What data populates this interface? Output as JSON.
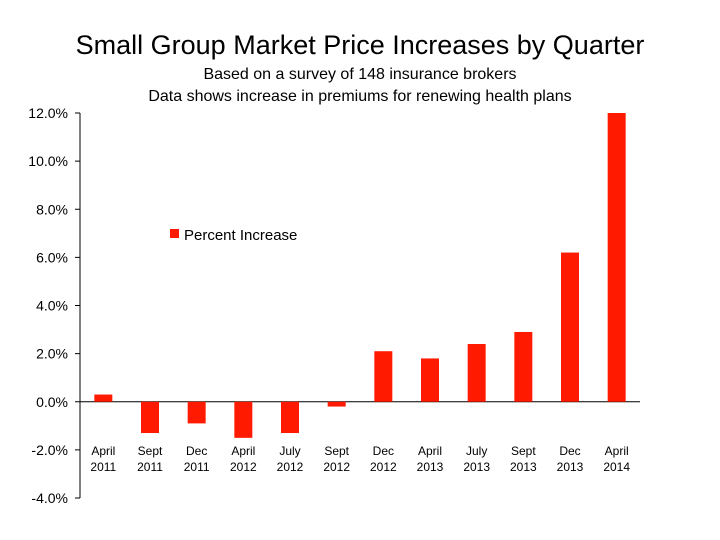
{
  "chart_data": {
    "type": "bar",
    "title": "Small Group Market Price Increases by Quarter",
    "subtitle": [
      "Based on a survey of 148 insurance brokers",
      "Data shows increase in premiums for renewing health plans"
    ],
    "categories": [
      [
        "April",
        "2011"
      ],
      [
        "Sept",
        "2011"
      ],
      [
        "Dec",
        "2011"
      ],
      [
        "April",
        "2012"
      ],
      [
        "July",
        "2012"
      ],
      [
        "Sept",
        "2012"
      ],
      [
        "Dec",
        "2012"
      ],
      [
        "April",
        "2013"
      ],
      [
        "July",
        "2013"
      ],
      [
        "Sept",
        "2013"
      ],
      [
        "Dec",
        "2013"
      ],
      [
        "April",
        "2014"
      ]
    ],
    "series": [
      {
        "name": "Percent Increase",
        "values": [
          0.3,
          -1.3,
          -0.9,
          -1.5,
          -1.3,
          -0.2,
          2.1,
          1.8,
          2.4,
          2.9,
          6.2,
          12.0
        ]
      }
    ],
    "ylim": [
      -4,
      12
    ],
    "yticks": [
      12,
      10,
      8,
      6,
      4,
      2,
      0,
      -2,
      -4
    ],
    "ytick_labels": [
      "12.0%",
      "10.0%",
      "8.0%",
      "6.0%",
      "4.0%",
      "2.0%",
      "0.0%",
      "-2.0%",
      "-4.0%"
    ],
    "legend_position": "upper-left inside plot",
    "grid": false,
    "bar_color": "#ff1a00"
  }
}
